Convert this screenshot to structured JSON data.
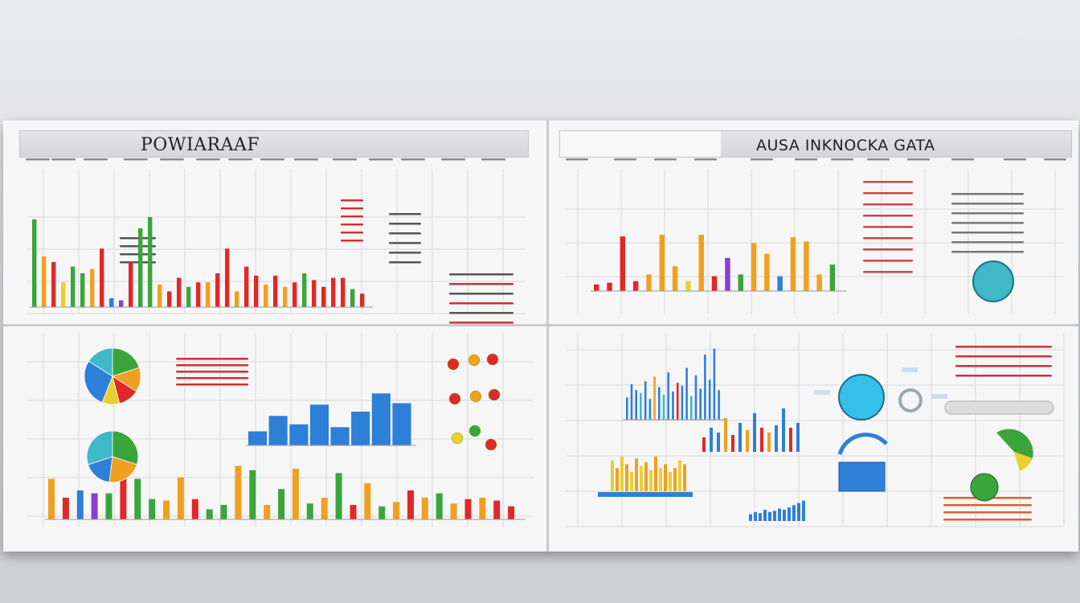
{
  "titles": {
    "top_left": "POWIARAAF",
    "top_right": "AUSA INKNOCKA GATA"
  },
  "colors": {
    "green": "#3aa53a",
    "orange": "#f0a020",
    "red": "#e02828",
    "blue": "#2e7fd8",
    "yellow": "#e8d030",
    "purple": "#8a3fd0",
    "teal": "#3fb8c8"
  },
  "chart_data": [
    {
      "type": "bar",
      "panel": "top-left",
      "values": [
        78,
        45,
        40,
        22,
        36,
        30,
        34,
        52,
        8,
        6,
        40,
        70,
        80,
        20,
        14,
        26,
        18,
        22,
        22,
        30,
        52,
        14,
        36,
        28,
        20,
        28,
        18,
        22,
        30,
        24,
        18,
        26,
        26,
        16,
        12
      ],
      "colors": [
        "green",
        "orange",
        "red",
        "yellow",
        "green",
        "green",
        "orange",
        "red",
        "blue",
        "purple",
        "red",
        "green",
        "green",
        "orange",
        "red",
        "red",
        "green",
        "red",
        "orange",
        "red",
        "red",
        "orange",
        "red",
        "red",
        "orange",
        "red",
        "orange",
        "red",
        "green",
        "red",
        "red",
        "red",
        "red",
        "green",
        "red"
      ]
    },
    {
      "type": "bar",
      "panel": "top-right",
      "values": [
        8,
        10,
        66,
        12,
        20,
        68,
        30,
        12,
        68,
        18,
        40,
        20,
        58,
        45,
        18,
        65,
        60,
        20,
        32
      ],
      "colors": [
        "red",
        "red",
        "red",
        "red",
        "orange",
        "orange",
        "orange",
        "yellow",
        "orange",
        "red",
        "purple",
        "green",
        "orange",
        "orange",
        "blue",
        "orange",
        "orange",
        "orange",
        "green"
      ]
    },
    {
      "type": "pie",
      "panel": "bottom-left-1",
      "values": [
        20,
        14,
        12,
        10,
        28,
        16
      ],
      "colors": [
        "green",
        "orange",
        "red",
        "yellow",
        "blue",
        "teal"
      ]
    },
    {
      "type": "pie",
      "panel": "bottom-left-2",
      "values": [
        30,
        22,
        18,
        30
      ],
      "colors": [
        "green",
        "orange",
        "blue",
        "teal"
      ]
    },
    {
      "type": "bar",
      "panel": "bottom-left-blue",
      "values": [
        20,
        42,
        30,
        58,
        26,
        48,
        74,
        60
      ],
      "colors": [
        "blue",
        "blue",
        "blue",
        "blue",
        "blue",
        "blue",
        "blue",
        "blue"
      ]
    },
    {
      "type": "bar",
      "panel": "bottom-left-bottom",
      "values": [
        56,
        30,
        40,
        36,
        36,
        64,
        56,
        28,
        26,
        58,
        28,
        14,
        20,
        74,
        68,
        20,
        42,
        70,
        22,
        30,
        64,
        20,
        50,
        18,
        24,
        40,
        30,
        36,
        22,
        28,
        30,
        26,
        18
      ],
      "colors": [
        "orange",
        "red",
        "blue",
        "purple",
        "green",
        "red",
        "green",
        "green",
        "orange",
        "orange",
        "red",
        "green",
        "green",
        "orange",
        "green",
        "orange",
        "green",
        "orange",
        "green",
        "orange",
        "green",
        "red",
        "orange",
        "green",
        "orange",
        "red",
        "orange",
        "green",
        "orange",
        "red",
        "orange",
        "red",
        "red"
      ]
    },
    {
      "type": "bar",
      "panel": "bottom-right-hist",
      "values": [
        30,
        48,
        40,
        36,
        52,
        28,
        58,
        44,
        34,
        64,
        38,
        50,
        46,
        70,
        32,
        60,
        42,
        88,
        54,
        96,
        40
      ],
      "colors": [
        "blue",
        "blue",
        "blue",
        "teal",
        "blue",
        "blue",
        "orange",
        "blue",
        "teal",
        "blue",
        "blue",
        "red",
        "blue",
        "blue",
        "teal",
        "blue",
        "blue",
        "blue",
        "blue",
        "blue",
        "blue"
      ]
    }
  ]
}
